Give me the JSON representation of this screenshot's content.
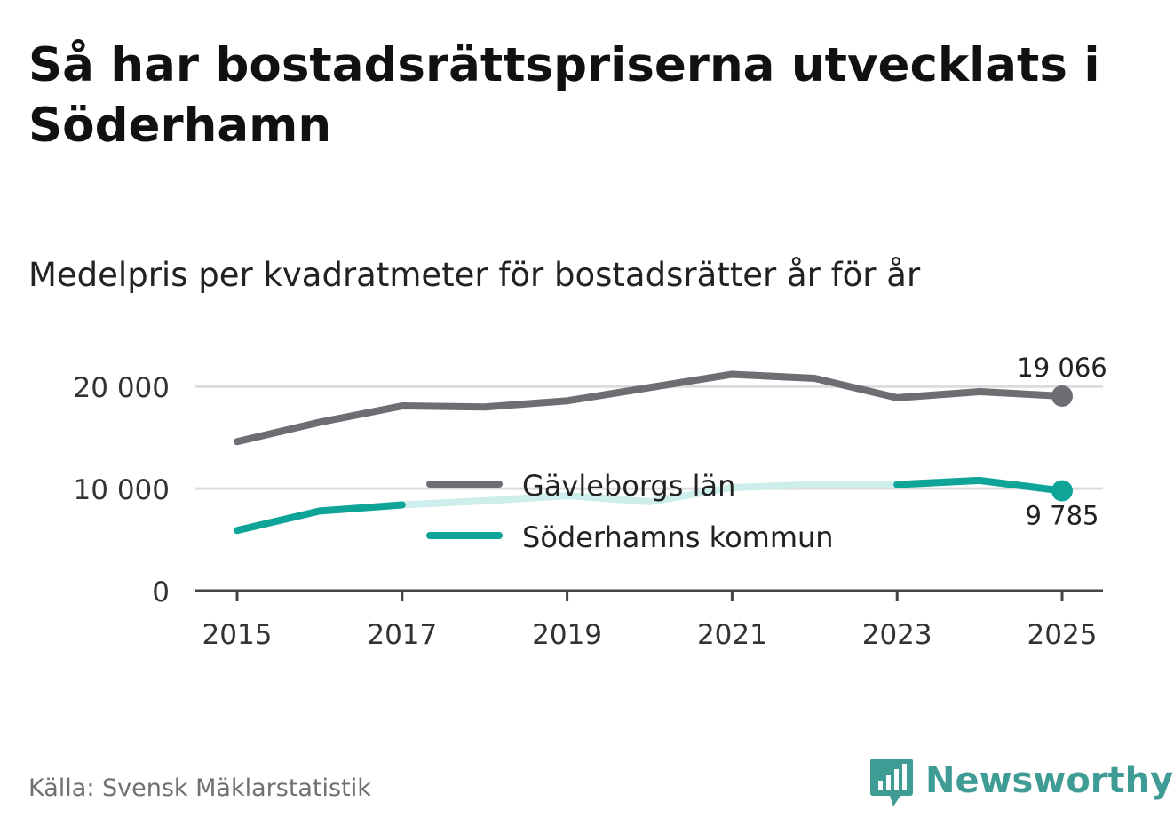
{
  "title": "Så har bostadsrättspriserna utvecklats i Söderhamn",
  "subtitle": "Medelpris per kvadratmeter för bostadsrätter år för år",
  "source": "Källa: Svensk Mäklarstatistik",
  "brand": {
    "name": "Newsworthy",
    "color": "#3f9c94",
    "icon": "bar-chart-speech-bubble-icon"
  },
  "colors": {
    "gavleborg": "#6d6d73",
    "soderhamn": "#0ea497",
    "soderhamn_faded": "#cdeeea",
    "grid": "#dcdcdc",
    "axis": "#444444"
  },
  "chart_data": {
    "type": "line",
    "title": "Medelpris per kvadratmeter för bostadsrätter år för år",
    "x": [
      2015,
      2016,
      2017,
      2018,
      2019,
      2020,
      2021,
      2022,
      2023,
      2024,
      2025
    ],
    "xticks": [
      "2015",
      "2017",
      "2019",
      "2021",
      "2023",
      "2025"
    ],
    "yticks": [
      {
        "value": 0,
        "label": "0"
      },
      {
        "value": 10000,
        "label": "10 000"
      },
      {
        "value": 20000,
        "label": "20 000"
      }
    ],
    "ylim": [
      0,
      21500
    ],
    "grid": true,
    "legend_position": "center",
    "series": [
      {
        "name": "Gävleborgs län",
        "values": [
          14600,
          16500,
          18100,
          18000,
          18600,
          19900,
          21200,
          20800,
          18900,
          19500,
          19066
        ],
        "end_label": "19 066"
      },
      {
        "name": "Söderhamns kommun",
        "values": [
          5900,
          7800,
          8400,
          8800,
          9300,
          8700,
          10100,
          10400,
          10400,
          10800,
          9785
        ],
        "end_label": "9 785"
      }
    ]
  }
}
